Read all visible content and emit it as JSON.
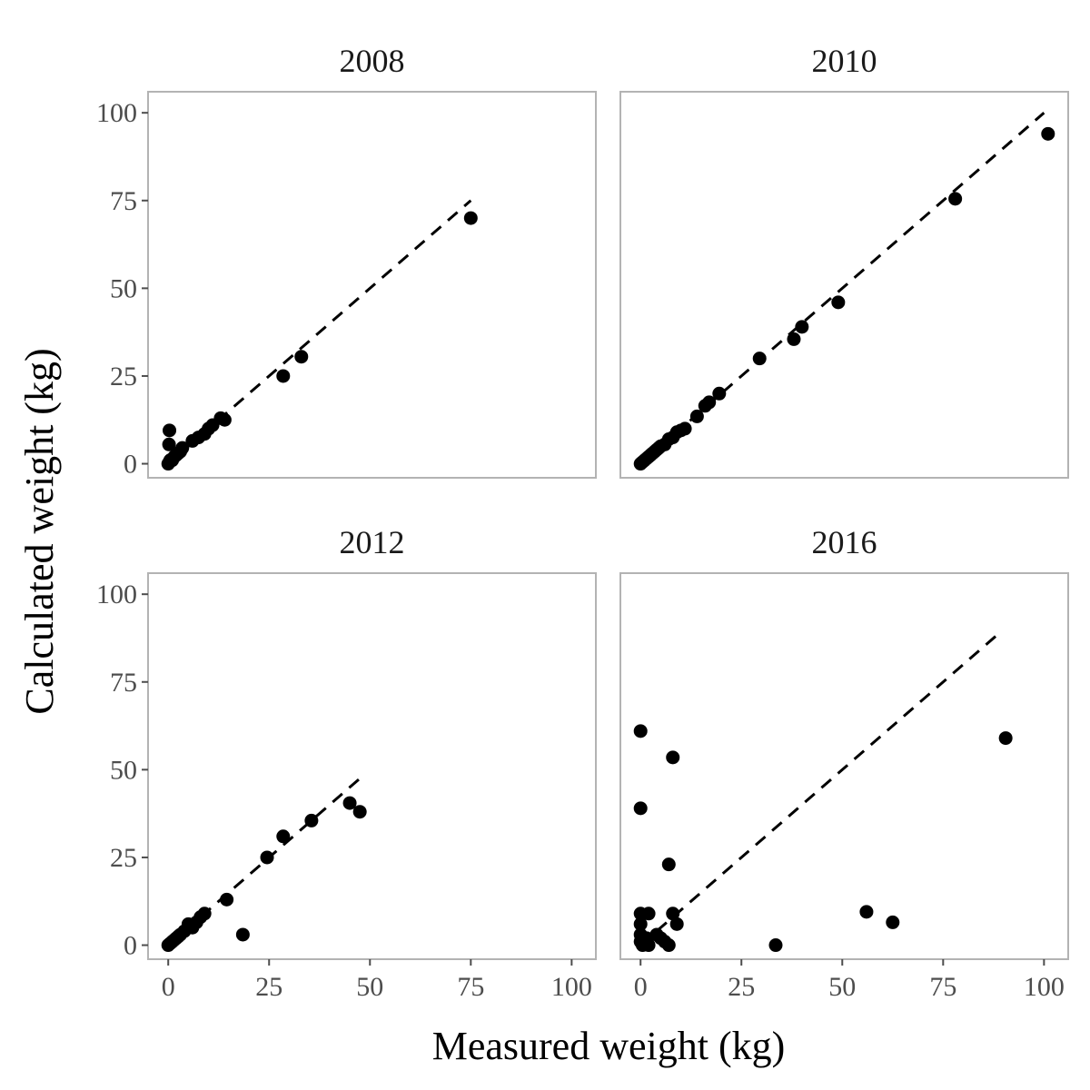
{
  "chart_data": {
    "type": "scatter",
    "layout": "facet-grid-2x2",
    "xlabel": "Measured weight (kg)",
    "ylabel": "Calculated weight (kg)",
    "xlim": [
      -5,
      106
    ],
    "ylim": [
      -4,
      106
    ],
    "xticks": [
      0,
      25,
      50,
      75,
      100
    ],
    "yticks": [
      0,
      25,
      50,
      75,
      100
    ],
    "grid": false,
    "point_color": "#000000",
    "line_color": "#000000",
    "panel_border_color": "#b3b3b3",
    "panels": [
      {
        "title": "2008",
        "reference_line": [
          [
            0,
            0
          ],
          [
            75,
            75
          ]
        ],
        "points": [
          [
            0,
            0
          ],
          [
            0.3,
            0.5
          ],
          [
            0.5,
            1
          ],
          [
            0.2,
            5.5
          ],
          [
            0.3,
            9.5
          ],
          [
            1,
            1
          ],
          [
            1.5,
            2
          ],
          [
            2,
            2.5
          ],
          [
            2.5,
            3
          ],
          [
            3,
            3.5
          ],
          [
            3.5,
            4.5
          ],
          [
            6,
            6.5
          ],
          [
            7.5,
            7.5
          ],
          [
            9,
            8.5
          ],
          [
            10,
            10
          ],
          [
            11,
            11
          ],
          [
            13,
            13
          ],
          [
            14,
            12.5
          ],
          [
            28.5,
            25
          ],
          [
            33,
            30.5
          ],
          [
            75,
            70
          ]
        ]
      },
      {
        "title": "2010",
        "reference_line": [
          [
            0,
            0
          ],
          [
            100,
            100
          ]
        ],
        "points": [
          [
            0,
            0
          ],
          [
            0.5,
            0.5
          ],
          [
            1,
            1
          ],
          [
            1.5,
            1.5
          ],
          [
            2,
            2
          ],
          [
            2.5,
            2.5
          ],
          [
            3,
            3
          ],
          [
            3.5,
            3.5
          ],
          [
            4,
            4
          ],
          [
            4.5,
            4.5
          ],
          [
            5,
            5
          ],
          [
            6,
            5.5
          ],
          [
            7,
            7
          ],
          [
            8,
            7.5
          ],
          [
            9,
            9
          ],
          [
            10,
            9.5
          ],
          [
            11,
            10
          ],
          [
            14,
            13.5
          ],
          [
            16,
            16.5
          ],
          [
            17,
            17.5
          ],
          [
            19.5,
            20
          ],
          [
            29.5,
            30
          ],
          [
            38,
            35.5
          ],
          [
            40,
            39
          ],
          [
            49,
            46
          ],
          [
            78,
            75.5
          ],
          [
            101,
            94
          ]
        ]
      },
      {
        "title": "2012",
        "reference_line": [
          [
            0,
            0
          ],
          [
            48,
            48
          ]
        ],
        "points": [
          [
            0,
            0
          ],
          [
            0.5,
            0.5
          ],
          [
            1,
            1
          ],
          [
            1.5,
            1.5
          ],
          [
            2,
            2
          ],
          [
            2.5,
            2.5
          ],
          [
            3,
            3
          ],
          [
            4,
            4
          ],
          [
            5,
            6
          ],
          [
            6,
            5
          ],
          [
            7,
            6.5
          ],
          [
            8,
            8
          ],
          [
            9,
            9
          ],
          [
            14.5,
            13
          ],
          [
            18.5,
            3
          ],
          [
            24.5,
            25
          ],
          [
            28.5,
            31
          ],
          [
            35.5,
            35.5
          ],
          [
            45,
            40.5
          ],
          [
            47.5,
            38
          ]
        ]
      },
      {
        "title": "2016",
        "reference_line": [
          [
            0,
            0
          ],
          [
            88,
            88
          ]
        ],
        "points": [
          [
            0,
            61
          ],
          [
            0,
            39
          ],
          [
            0,
            9
          ],
          [
            0,
            6
          ],
          [
            0,
            3
          ],
          [
            0,
            1
          ],
          [
            0.5,
            0
          ],
          [
            1,
            0.5
          ],
          [
            1.5,
            2
          ],
          [
            2,
            9
          ],
          [
            2,
            0
          ],
          [
            4,
            3
          ],
          [
            5,
            2
          ],
          [
            6,
            1
          ],
          [
            7,
            0
          ],
          [
            7,
            23
          ],
          [
            8,
            53.5
          ],
          [
            8,
            9
          ],
          [
            9,
            6
          ],
          [
            33.5,
            0
          ],
          [
            56,
            9.5
          ],
          [
            62.5,
            6.5
          ],
          [
            90.5,
            59
          ]
        ]
      }
    ]
  }
}
